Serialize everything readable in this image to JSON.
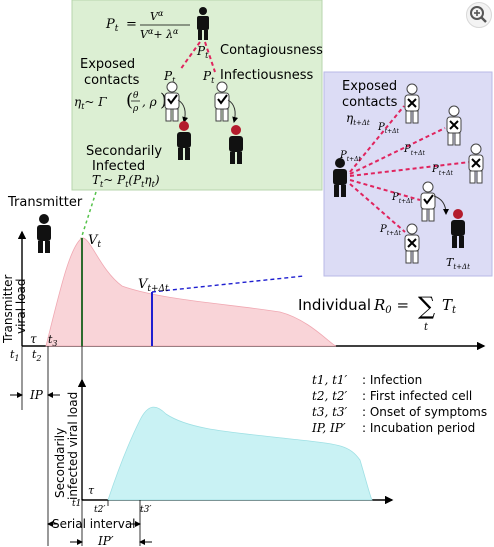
{
  "contagion_box": {
    "formula_lhs": "P",
    "formula_sub": "t",
    "formula_num": "V",
    "formula_exp": "α",
    "formula_den_plus": "+ λ",
    "contagiousness": "Contagiousness",
    "infectiousness": "Infectiousness",
    "exposed_contacts": "Exposed",
    "exposed_contacts_2": "contacts",
    "eta_formula": "η",
    "eta_rhs": "~ Γ",
    "secondarily": "Secondarily",
    "infected": "Infected",
    "T_formula": "T",
    "T_rhs": "~ P",
    "P_t": "P",
    "P_sub": "t"
  },
  "right_box": {
    "exposed": "Exposed",
    "contacts": "contacts",
    "eta": "η",
    "eta_sub": "t+Δt",
    "P": "P",
    "P_sub": "t+Δt",
    "T": "T",
    "T_sub": "t+Δt"
  },
  "top_plot": {
    "transmitter": "Transmitter",
    "ylabel_1": "Transmitter",
    "ylabel_2": "viral load",
    "V": "V",
    "V_sub": "t",
    "V2": "V",
    "V2_sub": "t+Δt",
    "tau": "τ",
    "t1": "t",
    "t1_sub": "1",
    "t2": "t",
    "t2_sub": "2",
    "t3": "t",
    "t3_sub": "3",
    "ip": "IP"
  },
  "individual_r0": {
    "text": "Individual",
    "R": "R",
    "R_sub": "0",
    "eq": "=",
    "sum": "∑",
    "sum_sub": "t",
    "T": "T",
    "T_sub": "t"
  },
  "legend": [
    {
      "sym": "t1, t1′",
      "desc": ": Infection"
    },
    {
      "sym": "t2, t2′",
      "desc": ": First infected cell"
    },
    {
      "sym": "t3, t3′",
      "desc": ": Onset of symptoms"
    },
    {
      "sym": "IP, IP′",
      "desc": ": Incubation period"
    }
  ],
  "bottom_plot": {
    "ylabel_1": "Secondarily",
    "ylabel_2": "infected viral load",
    "tau": "τ",
    "t1p": "t1′",
    "t2p": "t2′",
    "t3p": "t3′",
    "serial": "Serial interval",
    "ipp": "IP′"
  },
  "colors": {
    "green_bg": "#dcefd3",
    "blue_bg": "#dcdcf5",
    "pink_fill": "#f9d4d8",
    "cyan_fill": "#c9f2f4",
    "red_dash": "#e0245e",
    "blue_line": "#1f1fd0",
    "green_line": "#2d6b2d"
  },
  "icons": [
    "person-icon",
    "check-icon",
    "x-icon",
    "virus-icon",
    "zoom-in-icon"
  ]
}
